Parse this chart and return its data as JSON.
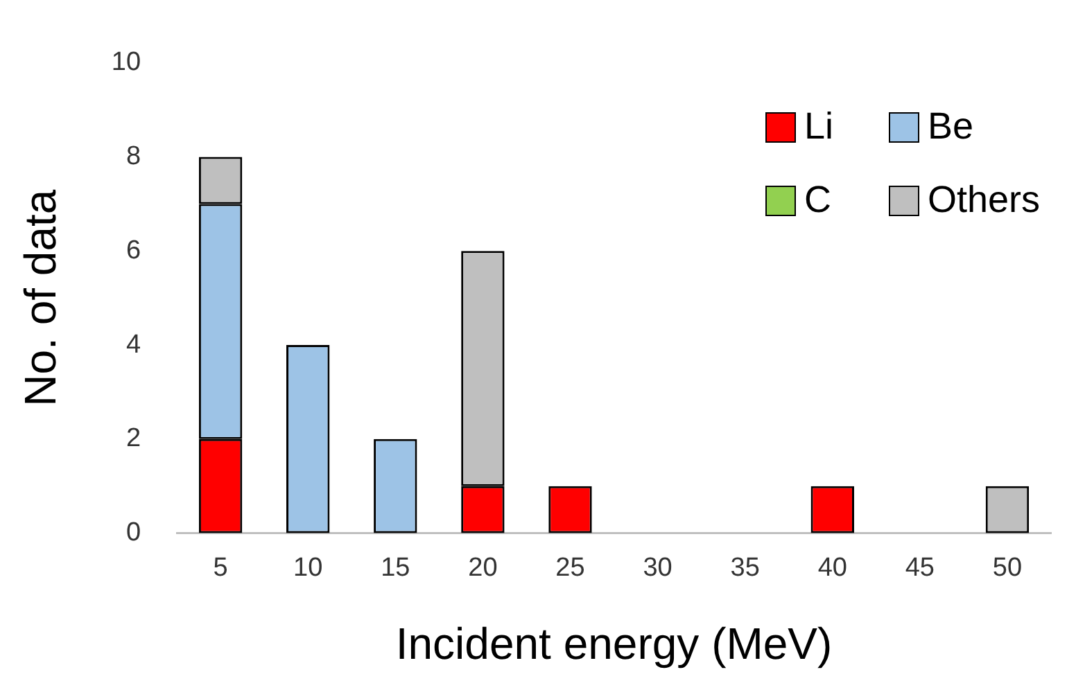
{
  "chart_data": {
    "type": "bar",
    "stacked": true,
    "xlabel": "Incident energy (MeV)",
    "ylabel": "No. of data",
    "categories": [
      "5",
      "10",
      "15",
      "20",
      "25",
      "30",
      "35",
      "40",
      "45",
      "50"
    ],
    "series": [
      {
        "name": "Li",
        "color": "#ff0000",
        "values": [
          2,
          0,
          0,
          1,
          1,
          0,
          0,
          1,
          0,
          0
        ]
      },
      {
        "name": "Be",
        "color": "#9dc3e6",
        "values": [
          5,
          4,
          2,
          0,
          0,
          0,
          0,
          0,
          0,
          0
        ]
      },
      {
        "name": "C",
        "color": "#92d050",
        "values": [
          0,
          0,
          0,
          0,
          0,
          0,
          0,
          0,
          0,
          0
        ]
      },
      {
        "name": "Others",
        "color": "#bfbfbf",
        "values": [
          1,
          0,
          0,
          5,
          0,
          0,
          0,
          0,
          0,
          1
        ]
      }
    ],
    "ylim": [
      0,
      10
    ],
    "yticks": [
      0,
      2,
      4,
      6,
      8,
      10
    ],
    "grid": false,
    "legend": "top right"
  }
}
